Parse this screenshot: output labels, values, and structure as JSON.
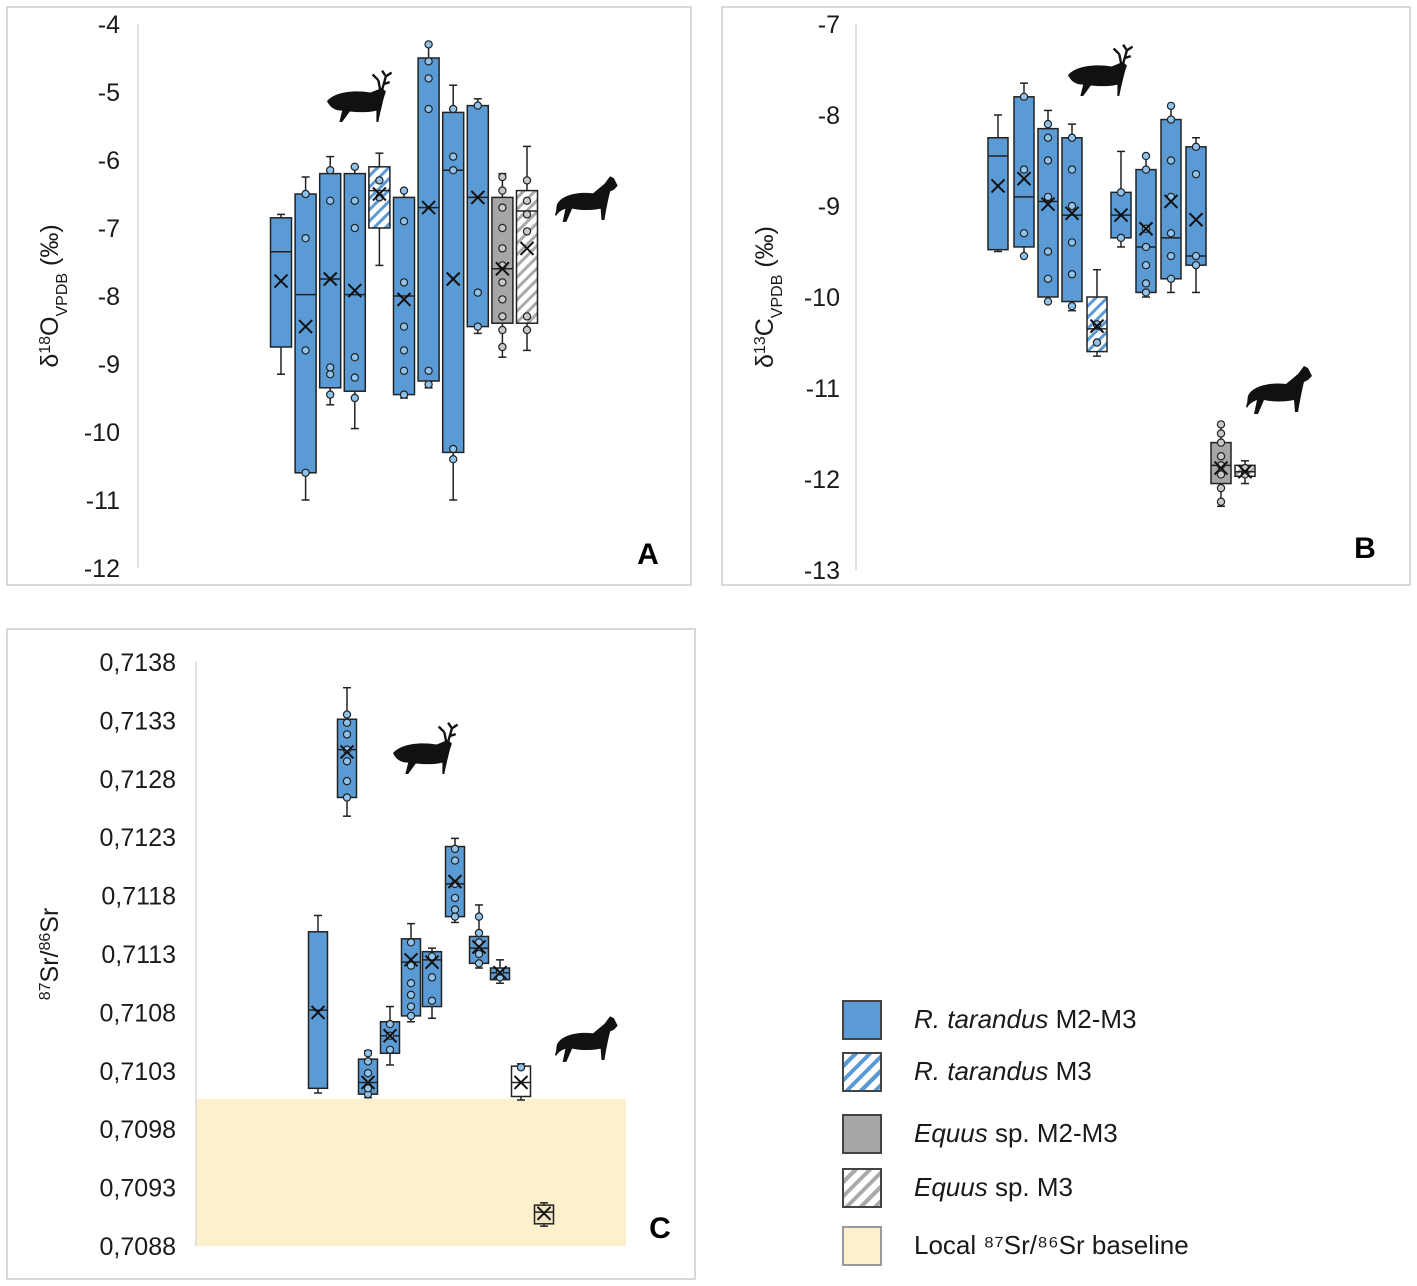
{
  "colors": {
    "blue": "#5b9bd5",
    "grey": "#a6a6a6",
    "baseline": "#fdf0cc",
    "stroke": "#222222"
  },
  "legend": {
    "items": [
      {
        "italic": "R. tarandus",
        "rest": " M2-M3",
        "swatch": "blue"
      },
      {
        "italic": "R. tarandus",
        "rest": " M3",
        "swatch": "blue-hatch"
      },
      {
        "italic": "Equus",
        "rest": " sp. M2-M3",
        "swatch": "grey"
      },
      {
        "italic": "Equus",
        "rest": " sp. M3",
        "swatch": "grey-hatch"
      },
      {
        "italic": "",
        "rest": "Local ⁸⁷Sr/⁸⁶Sr baseline",
        "swatch": "baseline"
      }
    ]
  },
  "chart_data": [
    {
      "panel": "A",
      "type": "box",
      "ylabel_main": "δ",
      "ylabel_sup": "18",
      "ylabel_mid": "O",
      "ylabel_sub": "VPDB",
      "ylabel_unit": " (‰)",
      "ylim": [
        -12,
        -4
      ],
      "yticks": [
        "-4",
        "-5",
        "-6",
        "-7",
        "-8",
        "-9",
        "-10",
        "-11",
        "-12"
      ],
      "series": [
        {
          "fill": "blue",
          "min": -9.15,
          "q1": -8.75,
          "med": -7.35,
          "q3": -6.85,
          "max": -6.8,
          "mean": -7.78,
          "pts": []
        },
        {
          "fill": "blue",
          "min": -11.0,
          "q1": -10.6,
          "med": -7.98,
          "q3": -6.5,
          "max": -6.25,
          "mean": -8.45,
          "pts": [
            -10.6,
            -8.8,
            -7.15,
            -6.5
          ]
        },
        {
          "fill": "blue",
          "min": -9.6,
          "q1": -9.35,
          "med": -7.75,
          "q3": -6.2,
          "max": -5.95,
          "mean": -7.75,
          "pts": [
            -9.45,
            -9.15,
            -9.05,
            -6.6,
            -6.15
          ]
        },
        {
          "fill": "blue",
          "min": -9.95,
          "q1": -9.4,
          "med": -7.98,
          "q3": -6.2,
          "max": -6.1,
          "mean": -7.92,
          "pts": [
            -9.5,
            -9.2,
            -8.9,
            -7.0,
            -6.6,
            -6.1
          ]
        },
        {
          "fill": "blue-hatch",
          "min": -7.55,
          "q1": -7.0,
          "med": -6.45,
          "q3": -6.1,
          "max": -5.9,
          "mean": -6.5,
          "pts": [
            -6.55,
            -6.3
          ]
        },
        {
          "fill": "blue",
          "min": -9.5,
          "q1": -9.45,
          "med": -8.0,
          "q3": -6.55,
          "max": -6.45,
          "mean": -8.05,
          "pts": [
            -9.45,
            -9.1,
            -8.8,
            -8.45,
            -7.8,
            -6.9,
            -6.45
          ]
        },
        {
          "fill": "blue",
          "min": -9.35,
          "q1": -9.25,
          "med": -6.7,
          "q3": -4.5,
          "max": -4.3,
          "mean": -6.7,
          "pts": [
            -9.3,
            -9.1,
            -5.25,
            -4.8,
            -4.55,
            -4.3
          ]
        },
        {
          "fill": "blue",
          "min": -11.0,
          "q1": -10.3,
          "med": -6.15,
          "q3": -5.3,
          "max": -4.9,
          "mean": -7.75,
          "pts": [
            -10.4,
            -10.25,
            -6.15,
            -5.95,
            -5.25
          ]
        },
        {
          "fill": "blue",
          "min": -8.55,
          "q1": -8.45,
          "med": -6.55,
          "q3": -5.2,
          "max": -5.1,
          "mean": -6.55,
          "pts": [
            -8.45,
            -7.95,
            -5.2
          ]
        },
        {
          "fill": "grey",
          "min": -8.9,
          "q1": -8.4,
          "med": -7.6,
          "q3": -6.55,
          "max": -6.2,
          "mean": -7.6,
          "pts": [
            -8.75,
            -8.5,
            -8.3,
            -8.05,
            -7.8,
            -7.55,
            -7.3,
            -7.0,
            -6.7,
            -6.45,
            -6.25
          ]
        },
        {
          "fill": "grey-hatch",
          "min": -8.8,
          "q1": -8.4,
          "med": -6.75,
          "q3": -6.45,
          "max": -5.8,
          "mean": -7.3,
          "pts": [
            -8.5,
            -8.3,
            -7.05,
            -6.8,
            -6.6,
            -6.3
          ]
        }
      ],
      "label": "A"
    },
    {
      "panel": "B",
      "type": "box",
      "ylabel_main": "δ",
      "ylabel_sup": "13",
      "ylabel_mid": "C",
      "ylabel_sub": "VPDB",
      "ylabel_unit": " (‰)",
      "ylim": [
        -13,
        -7
      ],
      "yticks": [
        "-7",
        "-8",
        "-9",
        "-10",
        "-11",
        "-12",
        "-13"
      ],
      "series": [
        {
          "fill": "blue",
          "min": -9.5,
          "q1": -9.48,
          "med": -8.45,
          "q3": -8.25,
          "max": -8.0,
          "mean": -8.78,
          "pts": []
        },
        {
          "fill": "blue",
          "min": -9.55,
          "q1": -9.45,
          "med": -8.9,
          "q3": -7.8,
          "max": -7.65,
          "mean": -8.7,
          "pts": [
            -9.55,
            -9.3,
            -8.6,
            -7.8
          ]
        },
        {
          "fill": "blue",
          "min": -10.05,
          "q1": -10.0,
          "med": -8.95,
          "q3": -8.15,
          "max": -7.95,
          "mean": -8.98,
          "pts": [
            -10.05,
            -9.8,
            -9.5,
            -8.9,
            -8.5,
            -8.25,
            -8.1
          ]
        },
        {
          "fill": "blue",
          "min": -10.15,
          "q1": -10.05,
          "med": -9.1,
          "q3": -8.25,
          "max": -8.1,
          "mean": -9.08,
          "pts": [
            -10.1,
            -9.75,
            -9.4,
            -9.0,
            -8.6,
            -8.25
          ]
        },
        {
          "fill": "blue-hatch",
          "min": -10.65,
          "q1": -10.6,
          "med": -10.35,
          "q3": -10.0,
          "max": -9.7,
          "mean": -10.32,
          "pts": [
            -10.5,
            -10.3
          ]
        },
        {
          "fill": "blue",
          "min": -9.45,
          "q1": -9.35,
          "med": -9.1,
          "q3": -8.85,
          "max": -8.4,
          "mean": -9.1,
          "pts": [
            -9.35,
            -8.85
          ]
        },
        {
          "fill": "blue",
          "min": -10.0,
          "q1": -9.95,
          "med": -9.45,
          "q3": -8.6,
          "max": -8.45,
          "mean": -9.25,
          "pts": [
            -9.95,
            -9.85,
            -9.65,
            -9.45,
            -9.25,
            -8.6,
            -8.45
          ]
        },
        {
          "fill": "blue",
          "min": -9.95,
          "q1": -9.8,
          "med": -9.35,
          "q3": -8.05,
          "max": -7.9,
          "mean": -8.95,
          "pts": [
            -9.8,
            -9.55,
            -9.3,
            -8.9,
            -8.5,
            -8.05,
            -7.9
          ]
        },
        {
          "fill": "blue",
          "min": -9.95,
          "q1": -9.65,
          "med": -9.55,
          "q3": -8.35,
          "max": -8.25,
          "mean": -9.15,
          "pts": [
            -9.65,
            -9.55,
            -8.65,
            -8.35
          ]
        },
        {
          "fill": "grey",
          "min": -12.3,
          "q1": -12.05,
          "med": -11.85,
          "q3": -11.6,
          "max": -11.4,
          "mean": -11.88,
          "pts": [
            -12.25,
            -12.1,
            -11.95,
            -11.85,
            -11.75,
            -11.6,
            -11.5,
            -11.4
          ]
        },
        {
          "fill": "grey-hatch",
          "min": -12.05,
          "q1": -11.97,
          "med": -11.92,
          "q3": -11.85,
          "max": -11.8,
          "mean": -11.92,
          "pts": [
            -11.95,
            -11.88
          ]
        }
      ],
      "label": "B"
    },
    {
      "panel": "C",
      "type": "box",
      "ylabel_main": "",
      "ylabel_sup": "87",
      "ylabel_mid": "Sr/",
      "ylabel_sup2": "86",
      "ylabel_end": "Sr",
      "ylim": [
        0.7088,
        0.7138
      ],
      "yticks": [
        "0,7138",
        "0,7133",
        "0,7128",
        "0,7123",
        "0,7118",
        "0,7113",
        "0,7108",
        "0,7103",
        "0,7098",
        "0,7093",
        "0,7088"
      ],
      "baseline": [
        0.7088,
        0.71006
      ],
      "series": [
        {
          "cx": 318,
          "fill": "blue",
          "min": 0.71011,
          "q1": 0.71015,
          "med": 0.71082,
          "q3": 0.71149,
          "max": 0.71163,
          "mean": 0.7108,
          "pts": []
        },
        {
          "cx": 347,
          "fill": "blue",
          "min": 0.71248,
          "q1": 0.71264,
          "med": 0.71305,
          "q3": 0.71331,
          "max": 0.71358,
          "mean": 0.71303,
          "pts": [
            0.71264,
            0.71278,
            0.71295,
            0.71305,
            0.71318,
            0.71328,
            0.71335
          ]
        },
        {
          "cx": 368,
          "fill": "blue",
          "min": 0.71007,
          "q1": 0.7101,
          "med": 0.7102,
          "q3": 0.7104,
          "max": 0.71047,
          "mean": 0.7102,
          "pts": [
            0.7101,
            0.71015,
            0.71028,
            0.71038,
            0.71045
          ]
        },
        {
          "cx": 390,
          "fill": "blue",
          "min": 0.71035,
          "q1": 0.71045,
          "med": 0.7106,
          "q3": 0.71072,
          "max": 0.71085,
          "mean": 0.7106,
          "pts": [
            0.71048,
            0.7106,
            0.7107
          ]
        },
        {
          "cx": 411,
          "fill": "blue",
          "min": 0.71072,
          "q1": 0.71077,
          "med": 0.71123,
          "q3": 0.71143,
          "max": 0.71156,
          "mean": 0.71125,
          "pts": [
            0.71077,
            0.71085,
            0.71095,
            0.71105,
            0.7112,
            0.7114
          ]
        },
        {
          "cx": 432,
          "fill": "blue",
          "min": 0.71075,
          "q1": 0.71085,
          "med": 0.71125,
          "q3": 0.71132,
          "max": 0.71135,
          "mean": 0.71123,
          "pts": [
            0.7109,
            0.7111,
            0.71128
          ]
        },
        {
          "cx": 455,
          "fill": "blue",
          "min": 0.71157,
          "q1": 0.71162,
          "med": 0.7119,
          "q3": 0.71222,
          "max": 0.71229,
          "mean": 0.71192,
          "pts": [
            0.71162,
            0.71168,
            0.71178,
            0.7119,
            0.7121,
            0.7122
          ]
        },
        {
          "cx": 479,
          "fill": "blue",
          "min": 0.71118,
          "q1": 0.71122,
          "med": 0.71135,
          "q3": 0.71145,
          "max": 0.71172,
          "mean": 0.71136,
          "pts": [
            0.71122,
            0.7113,
            0.7114,
            0.71148,
            0.71162
          ]
        },
        {
          "cx": 500,
          "fill": "blue",
          "min": 0.71105,
          "q1": 0.71108,
          "med": 0.71114,
          "q3": 0.71118,
          "max": 0.71125,
          "mean": 0.71114,
          "pts": [
            0.7111,
            0.71115
          ]
        },
        {
          "cx": 521,
          "fill": "white",
          "min": 0.71005,
          "q1": 0.71008,
          "med": 0.7102,
          "q3": 0.71034,
          "max": 0.71036,
          "mean": 0.7102,
          "pts": [
            0.71033
          ]
        },
        {
          "cx": 544,
          "fill": "beige",
          "min": 0.70897,
          "q1": 0.70899,
          "med": 0.70909,
          "q3": 0.70915,
          "max": 0.70917,
          "mean": 0.70908,
          "pts": []
        }
      ],
      "label": "C"
    }
  ]
}
